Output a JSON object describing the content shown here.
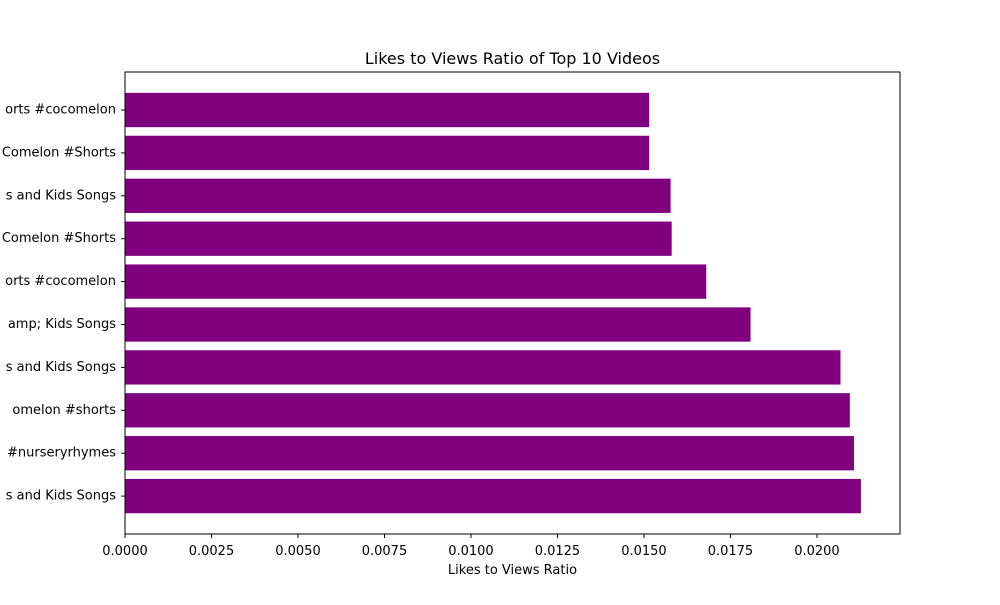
{
  "chart_data": {
    "type": "bar",
    "orientation": "horizontal",
    "title": "Likes to Views Ratio of Top 10 Videos",
    "xlabel": "Likes to Views Ratio",
    "ylabel": "",
    "xlim": [
      0,
      0.0224
    ],
    "xticks": [
      "0.0000",
      "0.0025",
      "0.0050",
      "0.0075",
      "0.0100",
      "0.0125",
      "0.0150",
      "0.0175",
      "0.0200"
    ],
    "bar_color": "#800080",
    "grid": false,
    "categories": [
      "orts #cocomelon",
      "Comelon #Shorts",
      "s and Kids Songs",
      "Comelon #Shorts",
      "orts #cocomelon",
      "amp; Kids Songs",
      "s and Kids Songs",
      "omelon  #shorts",
      "#nurseryrhymes",
      "s and Kids Songs"
    ],
    "values": [
      0.01515,
      0.01515,
      0.01577,
      0.0158,
      0.0168,
      0.01808,
      0.02068,
      0.02095,
      0.02107,
      0.02127
    ]
  }
}
